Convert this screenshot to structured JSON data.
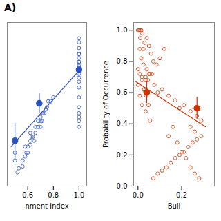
{
  "chart_data": [
    {
      "type": "scatter",
      "title": "A)",
      "xlabel": "nment Index",
      "color": "#2B50C0",
      "xlim": [
        0.44,
        1.06
      ],
      "ylim": [
        0.05,
        0.88
      ],
      "xticks": [
        0.6,
        0.8,
        {
          "value": 1.0,
          "label": "1.0"
        }
      ],
      "tick_labels": "x",
      "grid": false,
      "series": [
        {
          "type": "scatter",
          "marker": "open_circle",
          "x": [
            0.5,
            0.5,
            0.52,
            0.5,
            0.56,
            0.58,
            0.6,
            0.62,
            0.62,
            0.64,
            0.66,
            0.68,
            0.7,
            0.7,
            0.72,
            0.75,
            0.78,
            0.8,
            1.0,
            1.0,
            1.0,
            1.0,
            1.0,
            1.0,
            1.0,
            1.0,
            1.0,
            1.0,
            1.0,
            1.0,
            1.0,
            1.0,
            1.0,
            1.0,
            1.0,
            1.0,
            1.0,
            1.0,
            1.0,
            0.53,
            0.56,
            0.59,
            0.62,
            0.65,
            0.68,
            0.71,
            0.74,
            0.58,
            0.6,
            0.63,
            0.66,
            0.7,
            0.73,
            0.76
          ],
          "values": [
            0.18,
            0.28,
            0.12,
            0.22,
            0.15,
            0.25,
            0.22,
            0.28,
            0.32,
            0.3,
            0.35,
            0.38,
            0.4,
            0.35,
            0.42,
            0.45,
            0.48,
            0.5,
            0.65,
            0.68,
            0.7,
            0.72,
            0.64,
            0.66,
            0.62,
            0.58,
            0.6,
            0.55,
            0.5,
            0.45,
            0.4,
            0.35,
            0.75,
            0.78,
            0.8,
            0.72,
            0.68,
            0.42,
            0.38,
            0.14,
            0.18,
            0.22,
            0.26,
            0.28,
            0.35,
            0.38,
            0.44,
            0.2,
            0.25,
            0.3,
            0.32,
            0.38,
            0.42,
            0.48
          ]
        },
        {
          "type": "errorbar",
          "marker": "circle",
          "x": [
            0.5,
            0.69,
            1.0
          ],
          "values": [
            0.28,
            0.47,
            0.64
          ],
          "xerr": [
            0.02,
            0.02,
            0.0
          ],
          "yerr": [
            0.09,
            0.05,
            0.04
          ]
        },
        {
          "type": "line",
          "line_style": "solid",
          "x": [
            0.47,
            1.02
          ],
          "values": [
            0.25,
            0.65
          ]
        }
      ]
    },
    {
      "type": "scatter",
      "xlabel": "Buil",
      "ylabel": "Probability of Occurrence",
      "color": "#CC3300",
      "xlim": [
        -0.02,
        0.35
      ],
      "ylim": [
        0.0,
        1.05
      ],
      "xticks": [
        {
          "value": 0.0,
          "label": "0.0"
        },
        0.2
      ],
      "yticks": [
        {
          "value": 0.0,
          "label": "0.0"
        },
        0.2,
        0.4,
        0.6,
        0.8,
        {
          "value": 1.0,
          "label": "1.0"
        }
      ],
      "grid": false,
      "series": [
        {
          "type": "scatter",
          "marker": "open_circle",
          "x": [
            0.0,
            0.005,
            0.01,
            0.015,
            0.01,
            0.02,
            0.03,
            0.04,
            0.025,
            0.05,
            0.06,
            0.07,
            0.04,
            0.035,
            0.05,
            0.015,
            0.025,
            0.008,
            0.0,
            0.018,
            0.035,
            0.055,
            0.075,
            0.09,
            0.11,
            0.14,
            0.17,
            0.19,
            0.21,
            0.24,
            0.27,
            0.29,
            0.24,
            0.26,
            0.29,
            0.27,
            0.25,
            0.23,
            0.21,
            0.19,
            0.17,
            0.15,
            0.13,
            0.11,
            0.09,
            0.07,
            0.055,
            0.035,
            0.018,
            0.008,
            0.025,
            0.045,
            0.065,
            0.085,
            0.1,
            0.12,
            0.14,
            0.16,
            0.18,
            0.2,
            0.22,
            0.24,
            0.26,
            0.28,
            0.0,
            0.008,
            0.018,
            0.028,
            0.038,
            0.048
          ],
          "values": [
            1.0,
            1.0,
            1.0,
            1.0,
            0.95,
            0.98,
            0.92,
            0.95,
            0.88,
            0.9,
            0.85,
            0.8,
            0.75,
            0.7,
            0.72,
            0.82,
            0.78,
            0.88,
            0.65,
            0.7,
            0.68,
            0.72,
            0.65,
            0.6,
            0.62,
            0.58,
            0.55,
            0.5,
            0.52,
            0.48,
            0.45,
            0.42,
            0.38,
            0.35,
            0.32,
            0.3,
            0.28,
            0.25,
            0.22,
            0.2,
            0.18,
            0.15,
            0.12,
            0.1,
            0.08,
            0.05,
            0.42,
            0.48,
            0.52,
            0.58,
            0.62,
            0.68,
            0.72,
            0.78,
            0.82,
            0.88,
            0.32,
            0.38,
            0.28,
            0.22,
            0.18,
            0.12,
            0.08,
            0.05,
            0.75,
            0.72,
            0.68,
            0.62,
            0.58,
            0.52
          ]
        },
        {
          "type": "errorbar",
          "marker": "circle",
          "x": [
            0.04,
            0.27
          ],
          "values": [
            0.6,
            0.5
          ],
          "xerr": [
            0.015,
            0.02
          ],
          "yerr": [
            0.07,
            0.07
          ]
        },
        {
          "type": "line",
          "line_style": "solid",
          "x": [
            -0.01,
            0.31
          ],
          "values": [
            0.67,
            0.38
          ]
        }
      ]
    }
  ]
}
